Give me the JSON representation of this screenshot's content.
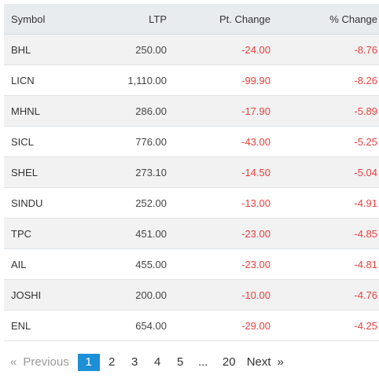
{
  "table": {
    "headers": {
      "symbol": "Symbol",
      "ltp": "LTP",
      "pt_change": "Pt. Change",
      "pct_change": "% Change"
    },
    "rows": [
      {
        "symbol": "BHL",
        "ltp": "250.00",
        "pt_change": "-24.00",
        "pct_change": "-8.76"
      },
      {
        "symbol": "LICN",
        "ltp": "1,110.00",
        "pt_change": "-99.90",
        "pct_change": "-8.26"
      },
      {
        "symbol": "MHNL",
        "ltp": "286.00",
        "pt_change": "-17.90",
        "pct_change": "-5.89"
      },
      {
        "symbol": "SICL",
        "ltp": "776.00",
        "pt_change": "-43.00",
        "pct_change": "-5.25"
      },
      {
        "symbol": "SHEL",
        "ltp": "273.10",
        "pt_change": "-14.50",
        "pct_change": "-5.04"
      },
      {
        "symbol": "SINDU",
        "ltp": "252.00",
        "pt_change": "-13.00",
        "pct_change": "-4.91"
      },
      {
        "symbol": "TPC",
        "ltp": "451.00",
        "pt_change": "-23.00",
        "pct_change": "-4.85"
      },
      {
        "symbol": "AIL",
        "ltp": "455.00",
        "pt_change": "-23.00",
        "pct_change": "-4.81"
      },
      {
        "symbol": "JOSHI",
        "ltp": "200.00",
        "pt_change": "-10.00",
        "pct_change": "-4.76"
      },
      {
        "symbol": "ENL",
        "ltp": "654.00",
        "pt_change": "-29.00",
        "pct_change": "-4.25"
      }
    ]
  },
  "pagination": {
    "prev_arrow": "«",
    "prev_label": "Previous",
    "pages": [
      "1",
      "2",
      "3",
      "4",
      "5"
    ],
    "active_page": "1",
    "ellipsis": "...",
    "last_page": "20",
    "next_label": "Next",
    "next_arrow": "»"
  },
  "colors": {
    "negative": "#e8413c",
    "active_page_bg": "#1d8fd6",
    "header_bg": "#e9ecef",
    "stripe_bg": "#f2f2f2"
  }
}
